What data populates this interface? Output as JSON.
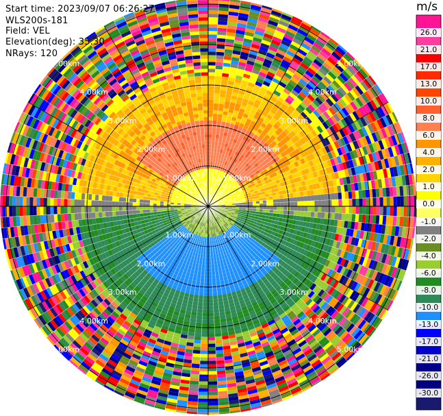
{
  "info": {
    "start_time": "Start time: 2023/09/07 06:26:27",
    "instrument": "WLS200s-181",
    "field": "Field: VEL",
    "elevation": "Elevation(deg): 35.30",
    "nrays": "NRays: 120"
  },
  "chart_data": {
    "type": "heatmap",
    "projection": "polar-ppi",
    "rays": 120,
    "elevation_deg": 35.3,
    "field": "VEL",
    "range_rings_km": [
      1.0,
      2.0,
      3.0,
      4.0,
      5.0
    ],
    "ring_labels": [
      "1.00km",
      "2.00km",
      "3.00km",
      "4.00km",
      "5.00km"
    ],
    "colorbar": {
      "title": "m/s",
      "ticks": [
        "26.0",
        "21.0",
        "17.0",
        "13.0",
        "10.0",
        "8.0",
        "6.0",
        "4.0",
        "2.0",
        "1.0",
        "0.0",
        "-1.0",
        "-2.0",
        "-4.0",
        "-6.0",
        "-8.0",
        "-10.0",
        "-13.0",
        "-17.0",
        "-21.0",
        "-26.0",
        "-30.0"
      ],
      "colors": [
        "#ff1493",
        "#ff3ca0",
        "#ff0000",
        "#ff2a00",
        "#ff4500",
        "#ff6030",
        "#ff7f50",
        "#ff9500",
        "#ffb000",
        "#ffd400",
        "#ffff00",
        "#ffff66",
        "#808080",
        "#6b8e23",
        "#9acd32",
        "#228b22",
        "#2e8b57",
        "#1e90ff",
        "#0000ff",
        "#0000cd",
        "#00008b",
        "#000080",
        "#191970"
      ]
    },
    "regions": [
      {
        "range_km": [
          0.0,
          1.0
        ],
        "pattern": "north-yellow / south-green, mixed near center"
      },
      {
        "range_km": [
          1.0,
          2.6
        ],
        "pattern": "north salmon/orange (~8), south blue (~-8), east-west grey/green"
      },
      {
        "range_km": [
          2.6,
          3.4
        ],
        "pattern": "north yellow-orange, south green"
      },
      {
        "range_km": [
          3.4,
          5.2
        ],
        "pattern": "noise (random colors)"
      }
    ]
  }
}
